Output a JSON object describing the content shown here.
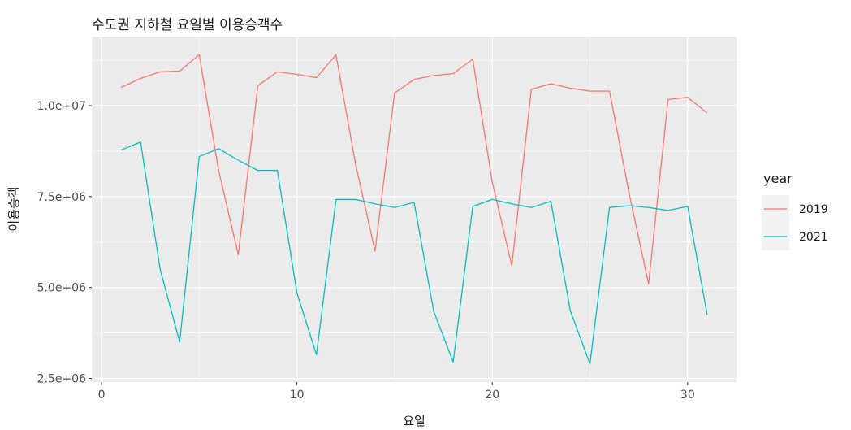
{
  "chart_data": {
    "type": "line",
    "title": "수도권 지하철 요일별 이용승객수",
    "xlabel": "요일",
    "ylabel": "이용승객",
    "xlim": [
      -0.5,
      32.5
    ],
    "ylim": [
      2400000,
      11900000
    ],
    "x_ticks": [
      0,
      10,
      20,
      30
    ],
    "x_tick_labels": [
      "0",
      "10",
      "20",
      "30"
    ],
    "y_ticks": [
      2500000,
      5000000,
      7500000,
      10000000
    ],
    "y_tick_labels": [
      "2.5e+06",
      "5.0e+06",
      "7.5e+06",
      "1.0e+07"
    ],
    "grid": true,
    "legend": {
      "title": "year",
      "position": "right"
    },
    "x": [
      1,
      2,
      3,
      4,
      5,
      6,
      7,
      8,
      9,
      10,
      11,
      12,
      13,
      14,
      15,
      16,
      17,
      18,
      19,
      20,
      21,
      22,
      23,
      24,
      25,
      26,
      27,
      28,
      29,
      30,
      31
    ],
    "series": [
      {
        "name": "2019",
        "color": "#F8766D",
        "values": [
          10500000,
          10750000,
          10930000,
          10950000,
          11400000,
          8200000,
          5900000,
          10550000,
          10930000,
          10860000,
          10770000,
          11400000,
          8400000,
          6000000,
          10350000,
          10720000,
          10830000,
          10880000,
          11280000,
          7900000,
          5600000,
          10450000,
          10600000,
          10480000,
          10400000,
          10400000,
          7600000,
          5100000,
          10170000,
          10230000,
          9800000
        ]
      },
      {
        "name": "2021",
        "color": "#00BFC4",
        "values": [
          8780000,
          9000000,
          5500000,
          3500000,
          8600000,
          8820000,
          8500000,
          8220000,
          8220000,
          4850000,
          3150000,
          7420000,
          7420000,
          7300000,
          7200000,
          7340000,
          4350000,
          2950000,
          7230000,
          7420000,
          7300000,
          7200000,
          7370000,
          4350000,
          2900000,
          7200000,
          7250000,
          7200000,
          7120000,
          7230000,
          4250000
        ]
      }
    ]
  }
}
